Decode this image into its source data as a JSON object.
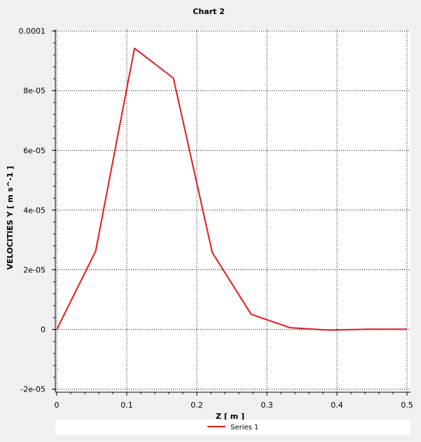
{
  "chart_data": {
    "type": "line",
    "title": "Chart 2",
    "xlabel": "Z [ m ]",
    "ylabel": "VELOCITIES Y [ m s^-1 ]",
    "xlim": [
      -0.002,
      0.505
    ],
    "ylim": [
      -2.1e-05,
      0.0001005
    ],
    "grid": true,
    "legend_position": "bottom",
    "x_ticks": [
      0,
      0.1,
      0.2,
      0.3,
      0.4,
      0.5
    ],
    "x_tick_labels": [
      "0",
      "0.1",
      "0.2",
      "0.3",
      "0.4",
      "0.5"
    ],
    "y_ticks": [
      0.0001,
      8e-05,
      6e-05,
      4e-05,
      2e-05,
      0,
      -2e-05
    ],
    "y_tick_labels": [
      "0.0001",
      "8e-05",
      "6e-05",
      "4e-05",
      "2e-05",
      "0",
      "-2e-05"
    ],
    "series": [
      {
        "name": "Series 1",
        "color": "#e31a1c",
        "x": [
          0,
          0.0555,
          0.111,
          0.1665,
          0.222,
          0.2775,
          0.333,
          0.3885,
          0.444,
          0.5
        ],
        "y": [
          0,
          2.62e-05,
          9.42e-05,
          8.42e-05,
          2.58e-05,
          5.1e-06,
          6e-07,
          -2e-07,
          1e-07,
          1e-07
        ]
      }
    ]
  }
}
